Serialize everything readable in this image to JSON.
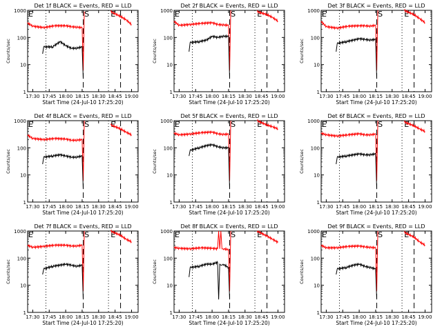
{
  "chart_data": [
    {
      "type": "line",
      "title": "Det 1f BLACK = Events, RED = LLD",
      "xlabel": "Start Time (24-Jul-10 17:25:20)",
      "ylabel": "Counts/sec",
      "yscale": "log",
      "ylim": [
        1,
        1000
      ],
      "xlim": [
        "17:25:20",
        "19:06:00"
      ],
      "yticks": [
        "1",
        "10",
        "100",
        "1000"
      ],
      "xticks": [
        "17:30",
        "17:45",
        "18:00",
        "18:15",
        "18:30",
        "18:45",
        "19:00"
      ],
      "markers": {
        "dotted": [
          "17:42",
          "18:39"
        ],
        "dashed": [
          "18:16",
          "18:50"
        ],
        "labels": [
          {
            "text": "E",
            "at": "17:25"
          },
          {
            "text": "S",
            "at": "18:17"
          },
          {
            "text": "E",
            "at": "18:41"
          }
        ]
      },
      "series": [
        {
          "color": "#ff0000",
          "x": [
            "17:25",
            "17:30",
            "17:40",
            "17:50",
            "18:00",
            "18:05",
            "18:10",
            "18:15",
            "18:16",
            "18:17",
            "18:40",
            "18:41",
            "18:50",
            "18:55",
            "19:00"
          ],
          "y": [
            350,
            260,
            230,
            270,
            270,
            250,
            240,
            230,
            6,
            900,
            null,
            900,
            600,
            450,
            300
          ]
        },
        {
          "color": "#000000",
          "x": [
            "17:39",
            "17:40",
            "17:48",
            "17:55",
            "18:00",
            "18:05",
            "18:10",
            "18:15",
            "18:16"
          ],
          "y": [
            25,
            45,
            45,
            70,
            50,
            40,
            40,
            45,
            3
          ]
        }
      ]
    },
    {
      "type": "line",
      "title": "Det 2f BLACK = Events, RED = LLD",
      "xlabel": "Start Time (24-Jul-10 17:25:20)",
      "ylabel": "Counts/sec",
      "yscale": "log",
      "ylim": [
        1,
        1000
      ],
      "xlim": [
        "17:25:20",
        "19:06:00"
      ],
      "yticks": [
        "1",
        "10",
        "100",
        "1000"
      ],
      "xticks": [
        "17:30",
        "17:45",
        "18:00",
        "18:15",
        "18:30",
        "18:45",
        "19:00"
      ],
      "markers": {
        "dotted": [
          "17:42",
          "18:39"
        ],
        "dashed": [
          "18:16",
          "18:50"
        ],
        "labels": [
          {
            "text": "E",
            "at": "17:25"
          },
          {
            "text": "S",
            "at": "18:17"
          },
          {
            "text": "E",
            "at": "18:41"
          }
        ]
      },
      "series": [
        {
          "color": "#ff0000",
          "x": [
            "17:25",
            "17:30",
            "17:40",
            "17:50",
            "18:00",
            "18:05",
            "18:10",
            "18:15",
            "18:16",
            "18:17",
            "18:40",
            "18:41",
            "18:50",
            "18:55",
            "19:00"
          ],
          "y": [
            400,
            280,
            300,
            330,
            350,
            300,
            290,
            280,
            6,
            1000,
            null,
            900,
            700,
            550,
            400
          ]
        },
        {
          "color": "#000000",
          "x": [
            "17:39",
            "17:40",
            "17:48",
            "17:55",
            "18:00",
            "18:05",
            "18:10",
            "18:15",
            "18:16"
          ],
          "y": [
            30,
            65,
            70,
            80,
            110,
            100,
            110,
            110,
            3
          ]
        }
      ]
    },
    {
      "type": "line",
      "title": "Det 3f BLACK = Events, RED = LLD",
      "xlabel": "Start Time (24-Jul-10 17:25:20)",
      "ylabel": "Counts/sec",
      "yscale": "log",
      "ylim": [
        1,
        1000
      ],
      "xlim": [
        "17:25:20",
        "19:06:00"
      ],
      "yticks": [
        "1",
        "10",
        "100",
        "1000"
      ],
      "xticks": [
        "17:30",
        "17:45",
        "18:00",
        "18:15",
        "18:30",
        "18:45",
        "19:00"
      ],
      "markers": {
        "dotted": [
          "17:42",
          "18:39"
        ],
        "dashed": [
          "18:16",
          "18:50"
        ],
        "labels": [
          {
            "text": "E",
            "at": "17:25"
          },
          {
            "text": "S",
            "at": "18:17"
          },
          {
            "text": "E",
            "at": "18:41"
          }
        ]
      },
      "series": [
        {
          "color": "#ff0000",
          "x": [
            "17:25",
            "17:30",
            "17:40",
            "17:50",
            "18:00",
            "18:05",
            "18:10",
            "18:15",
            "18:16",
            "18:17",
            "18:40",
            "18:41",
            "18:50",
            "18:55",
            "19:00"
          ],
          "y": [
            400,
            250,
            220,
            260,
            270,
            270,
            260,
            280,
            6,
            1000,
            null,
            1000,
            700,
            500,
            350
          ]
        },
        {
          "color": "#000000",
          "x": [
            "17:39",
            "17:40",
            "17:48",
            "17:55",
            "18:00",
            "18:05",
            "18:10",
            "18:15",
            "18:16"
          ],
          "y": [
            30,
            60,
            70,
            80,
            90,
            85,
            80,
            85,
            3
          ]
        }
      ]
    },
    {
      "type": "line",
      "title": "Det 4f BLACK = Events, RED = LLD",
      "xlabel": "Start Time (24-Jul-10 17:25:20)",
      "ylabel": "Counts/sec",
      "yscale": "log",
      "ylim": [
        1,
        1000
      ],
      "xlim": [
        "17:25:20",
        "19:06:00"
      ],
      "yticks": [
        "1",
        "10",
        "100",
        "1000"
      ],
      "xticks": [
        "17:30",
        "17:45",
        "18:00",
        "18:15",
        "18:30",
        "18:45",
        "19:00"
      ],
      "markers": {
        "dotted": [
          "17:42",
          "18:39"
        ],
        "dashed": [
          "18:16",
          "18:50"
        ],
        "labels": [
          {
            "text": "E",
            "at": "17:25"
          },
          {
            "text": "S",
            "at": "18:17"
          },
          {
            "text": "E",
            "at": "18:41"
          }
        ]
      },
      "series": [
        {
          "color": "#ff0000",
          "x": [
            "17:25",
            "17:30",
            "17:40",
            "17:50",
            "18:00",
            "18:05",
            "18:10",
            "18:15",
            "18:16",
            "18:17",
            "18:40",
            "18:41",
            "18:50",
            "18:55",
            "19:00"
          ],
          "y": [
            300,
            220,
            200,
            220,
            210,
            190,
            190,
            200,
            6,
            1000,
            null,
            700,
            500,
            380,
            300
          ]
        },
        {
          "color": "#000000",
          "x": [
            "17:39",
            "17:40",
            "17:48",
            "17:55",
            "18:00",
            "18:05",
            "18:10",
            "18:15",
            "18:16"
          ],
          "y": [
            25,
            45,
            50,
            55,
            50,
            45,
            45,
            50,
            3
          ]
        }
      ]
    },
    {
      "type": "line",
      "title": "Det 5f BLACK = Events, RED = LLD",
      "xlabel": "Start Time (24-Jul-10 17:25:20)",
      "ylabel": "Counts/sec",
      "yscale": "log",
      "ylim": [
        1,
        1000
      ],
      "xlim": [
        "17:25:20",
        "19:06:00"
      ],
      "yticks": [
        "1",
        "10",
        "100",
        "1000"
      ],
      "xticks": [
        "17:30",
        "17:45",
        "18:00",
        "18:15",
        "18:30",
        "18:45",
        "19:00"
      ],
      "markers": {
        "dotted": [
          "17:42",
          "18:39"
        ],
        "dashed": [
          "18:16",
          "18:50"
        ],
        "labels": [
          {
            "text": "E",
            "at": "17:25"
          },
          {
            "text": "S",
            "at": "18:17"
          },
          {
            "text": "E",
            "at": "18:41"
          }
        ]
      },
      "series": [
        {
          "color": "#ff0000",
          "x": [
            "17:25",
            "17:30",
            "17:40",
            "17:50",
            "18:00",
            "18:05",
            "18:10",
            "18:15",
            "18:16",
            "18:17",
            "18:40",
            "18:41",
            "18:50",
            "18:55",
            "19:00"
          ],
          "y": [
            350,
            300,
            320,
            360,
            380,
            330,
            310,
            320,
            6,
            1000,
            null,
            1000,
            700,
            600,
            500
          ]
        },
        {
          "color": "#000000",
          "x": [
            "17:39",
            "17:40",
            "17:48",
            "17:55",
            "18:00",
            "18:05",
            "18:10",
            "18:15",
            "18:16"
          ],
          "y": [
            50,
            80,
            100,
            120,
            130,
            110,
            100,
            100,
            3
          ]
        }
      ]
    },
    {
      "type": "line",
      "title": "Det 6f BLACK = Events, RED = LLD",
      "xlabel": "Start Time (24-Jul-10 17:25:20)",
      "ylabel": "Counts/sec",
      "yscale": "log",
      "ylim": [
        1,
        1000
      ],
      "xlim": [
        "17:25:20",
        "19:06:00"
      ],
      "yticks": [
        "1",
        "10",
        "100",
        "1000"
      ],
      "xticks": [
        "17:30",
        "17:45",
        "18:00",
        "18:15",
        "18:30",
        "18:45",
        "19:00"
      ],
      "markers": {
        "dotted": [
          "17:42",
          "18:39"
        ],
        "dashed": [
          "18:16",
          "18:50"
        ],
        "labels": [
          {
            "text": "E",
            "at": "17:25"
          },
          {
            "text": "S",
            "at": "18:17"
          },
          {
            "text": "E",
            "at": "18:41"
          }
        ]
      },
      "series": [
        {
          "color": "#ff0000",
          "x": [
            "17:25",
            "17:30",
            "17:40",
            "17:50",
            "18:00",
            "18:05",
            "18:10",
            "18:15",
            "18:16",
            "18:17",
            "18:40",
            "18:41",
            "18:50",
            "18:55",
            "19:00"
          ],
          "y": [
            350,
            300,
            270,
            300,
            330,
            300,
            300,
            320,
            6,
            1000,
            null,
            900,
            650,
            500,
            400
          ]
        },
        {
          "color": "#000000",
          "x": [
            "17:39",
            "17:40",
            "17:48",
            "17:55",
            "18:00",
            "18:05",
            "18:10",
            "18:15",
            "18:16"
          ],
          "y": [
            25,
            45,
            50,
            55,
            60,
            55,
            55,
            60,
            3
          ]
        }
      ]
    },
    {
      "type": "line",
      "title": "Det 7f BLACK = Events, RED = LLD",
      "xlabel": "Start Time (24-Jul-10 17:25:20)",
      "ylabel": "Counts/sec",
      "yscale": "log",
      "ylim": [
        1,
        1000
      ],
      "xlim": [
        "17:25:20",
        "19:06:00"
      ],
      "yticks": [
        "1",
        "10",
        "100",
        "1000"
      ],
      "xticks": [
        "17:30",
        "17:45",
        "18:00",
        "18:15",
        "18:30",
        "18:45",
        "19:00"
      ],
      "markers": {
        "dotted": [
          "17:42",
          "18:39"
        ],
        "dashed": [
          "18:16",
          "18:50"
        ],
        "labels": [
          {
            "text": "E",
            "at": "17:25"
          },
          {
            "text": "S",
            "at": "18:17"
          },
          {
            "text": "E",
            "at": "18:41"
          }
        ]
      },
      "series": [
        {
          "color": "#ff0000",
          "x": [
            "17:25",
            "17:30",
            "17:40",
            "17:50",
            "18:00",
            "18:05",
            "18:10",
            "18:15",
            "18:16",
            "18:17",
            "18:40",
            "18:41",
            "18:50",
            "18:55",
            "19:00"
          ],
          "y": [
            300,
            250,
            270,
            300,
            300,
            280,
            280,
            300,
            6,
            1000,
            null,
            1000,
            700,
            500,
            400
          ]
        },
        {
          "color": "#000000",
          "x": [
            "17:39",
            "17:40",
            "17:48",
            "17:55",
            "18:00",
            "18:05",
            "18:10",
            "18:15",
            "18:16"
          ],
          "y": [
            25,
            40,
            50,
            55,
            60,
            55,
            50,
            55,
            3
          ]
        }
      ]
    },
    {
      "type": "line",
      "title": "Det 8f BLACK = Events, RED = LLD",
      "xlabel": "Start Time (24-Jul-10 17:25:20)",
      "ylabel": "Counts/sec",
      "yscale": "log",
      "ylim": [
        1,
        1000
      ],
      "xlim": [
        "17:25:20",
        "19:06:00"
      ],
      "yticks": [
        "1",
        "10",
        "100",
        "1000"
      ],
      "xticks": [
        "17:30",
        "17:45",
        "18:00",
        "18:15",
        "18:30",
        "18:45",
        "19:00"
      ],
      "markers": {
        "dotted": [
          "17:42",
          "18:39"
        ],
        "dashed": [
          "18:16",
          "18:50"
        ],
        "labels": [
          {
            "text": "E",
            "at": "17:25"
          },
          {
            "text": "S",
            "at": "18:17"
          },
          {
            "text": "E",
            "at": "18:41"
          }
        ]
      },
      "series": [
        {
          "color": "#ff0000",
          "x": [
            "17:25",
            "17:30",
            "17:40",
            "17:50",
            "18:00",
            "18:05",
            "18:06",
            "18:07",
            "18:08",
            "18:09",
            "18:10",
            "18:15",
            "18:16",
            "18:17",
            "18:40",
            "18:41",
            "18:50",
            "18:55",
            "19:00"
          ],
          "y": [
            250,
            230,
            220,
            240,
            230,
            220,
            1000,
            220,
            1000,
            220,
            220,
            210,
            6,
            1000,
            null,
            1000,
            650,
            500,
            380
          ]
        },
        {
          "color": "#000000",
          "x": [
            "17:39",
            "17:40",
            "17:48",
            "17:55",
            "18:00",
            "18:05",
            "18:06",
            "18:07",
            "18:08",
            "18:09",
            "18:10",
            "18:15",
            "18:16"
          ],
          "y": [
            20,
            45,
            50,
            60,
            60,
            70,
            3,
            60,
            55,
            55,
            60,
            45,
            3
          ]
        }
      ]
    },
    {
      "type": "line",
      "title": "Det 9f BLACK = Events, RED = LLD",
      "xlabel": "Start Time (24-Jul-10 17:25:20)",
      "ylabel": "Counts/sec",
      "yscale": "log",
      "ylim": [
        1,
        1000
      ],
      "xlim": [
        "17:25:20",
        "19:06:00"
      ],
      "yticks": [
        "1",
        "10",
        "100",
        "1000"
      ],
      "xticks": [
        "17:30",
        "17:45",
        "18:00",
        "18:15",
        "18:30",
        "18:45",
        "19:00"
      ],
      "markers": {
        "dotted": [
          "17:42",
          "18:39"
        ],
        "dashed": [
          "18:16",
          "18:50"
        ],
        "labels": [
          {
            "text": "E",
            "at": "17:25"
          },
          {
            "text": "S",
            "at": "18:17"
          },
          {
            "text": "E",
            "at": "18:41"
          }
        ]
      },
      "series": [
        {
          "color": "#ff0000",
          "x": [
            "17:25",
            "17:30",
            "17:40",
            "17:50",
            "18:00",
            "18:05",
            "18:10",
            "18:15",
            "18:16",
            "18:17",
            "18:40",
            "18:41",
            "18:50",
            "18:55",
            "19:00"
          ],
          "y": [
            300,
            240,
            240,
            270,
            280,
            260,
            250,
            240,
            6,
            1000,
            null,
            900,
            600,
            400,
            300
          ]
        },
        {
          "color": "#000000",
          "x": [
            "17:39",
            "17:40",
            "17:48",
            "17:55",
            "18:00",
            "18:05",
            "18:10",
            "18:15",
            "18:16"
          ],
          "y": [
            25,
            40,
            45,
            55,
            60,
            50,
            45,
            40,
            3
          ]
        }
      ]
    }
  ]
}
